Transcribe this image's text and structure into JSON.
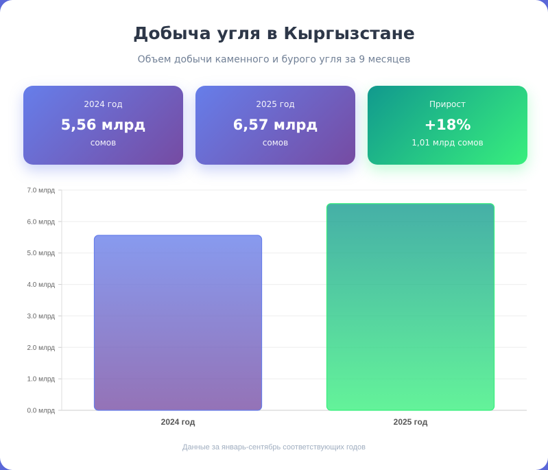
{
  "header": {
    "title": "Добыча угля в Кыргызстане",
    "subtitle": "Объем добычи каменного и бурого угля за 9 месяцев"
  },
  "stats": [
    {
      "label": "2024 год",
      "value": "5,56 млрд",
      "unit": "сомов"
    },
    {
      "label": "2025 год",
      "value": "6,57 млрд",
      "unit": "сомов"
    },
    {
      "label": "Прирост",
      "value": "+18%",
      "unit": "1,01 млрд сомов"
    }
  ],
  "colors": {
    "purple_start": "#667eea",
    "purple_end": "#764ba2",
    "green_start": "#11998e",
    "green_end": "#38ef7d"
  },
  "chart_data": {
    "type": "bar",
    "categories": [
      "2024 год",
      "2025 год"
    ],
    "values": [
      5.56,
      6.57
    ],
    "ylim": [
      0,
      7
    ],
    "yticks": [
      0,
      1,
      2,
      3,
      4,
      5,
      6,
      7
    ],
    "ytick_labels": [
      "0.0 млрд",
      "1.0 млрд",
      "2.0 млрд",
      "3.0 млрд",
      "4.0 млрд",
      "5.0 млрд",
      "6.0 млрд",
      "7.0 млрд"
    ],
    "grid": true,
    "legend": "none"
  },
  "footnote": "Данные за январь-сентябрь соответствующих годов"
}
